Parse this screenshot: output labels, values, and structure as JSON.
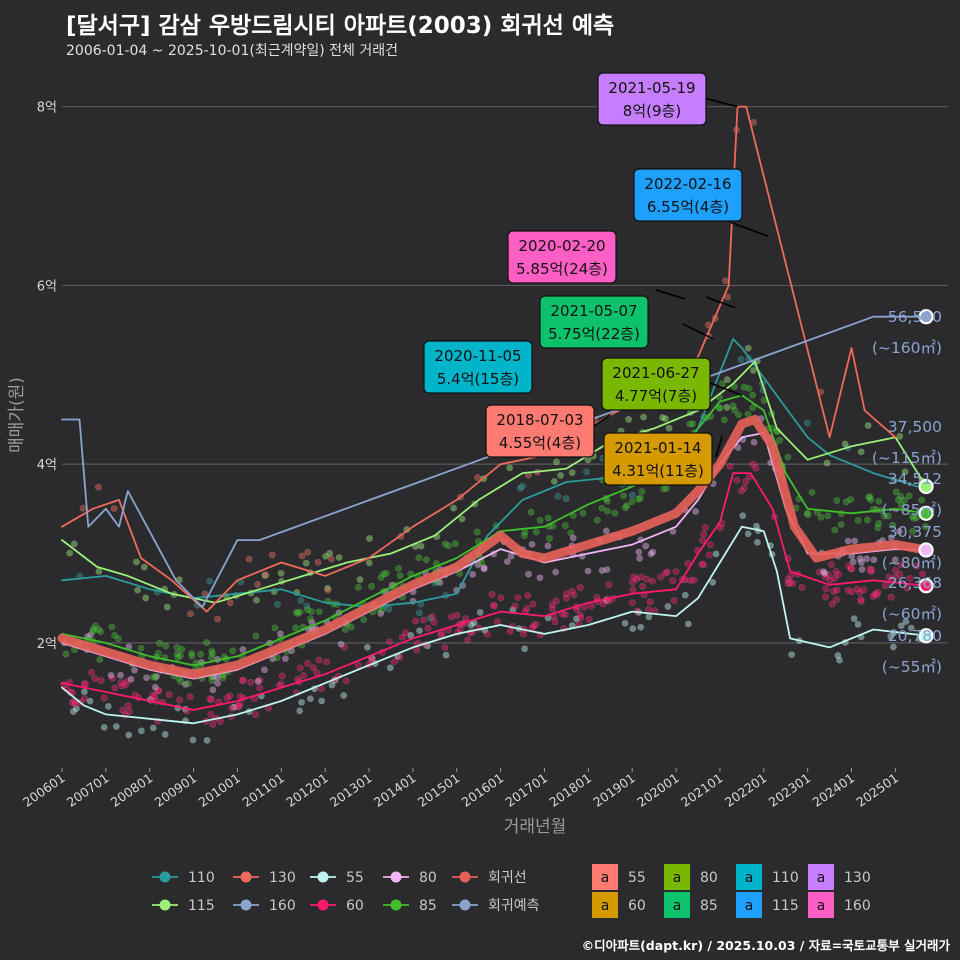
{
  "header": {
    "title": "[달서구] 감삼 우방드림시티 아파트(2003) 회귀선 예측",
    "subtitle": "2006-01-04 ~ 2025-10-01(최근계약일) 전체 거래건",
    "credit": "©디아파트(dapt.kr) / 2025.10.03 / 자료=국토교통부 실거래가"
  },
  "colors": {
    "background": "#2b2b2d",
    "grid": "#5a5a5c",
    "s110": "#2a9c9c",
    "s115": "#9bf07a",
    "s130": "#ef6a5a",
    "s160": "#8aa3cf",
    "s55": "#bff5f0",
    "s60": "#ff1a6e",
    "s80": "#f0b6f5",
    "s85": "#3fbf2a",
    "regression": "#e8605a",
    "forecast": "#8aa3cf"
  },
  "chart_data": {
    "type": "line",
    "title": "[달서구] 감삼 우방드림시티 아파트(2003) 회귀선 예측",
    "xlabel": "거래년월",
    "ylabel": "매매가(원)",
    "xlim": [
      2006.0,
      2026.2
    ],
    "ylim": [
      0.6,
      8.5
    ],
    "y_ticks": [
      {
        "value": 2,
        "label": "2억"
      },
      {
        "value": 4,
        "label": "4억"
      },
      {
        "value": 6,
        "label": "6억"
      },
      {
        "value": 8,
        "label": "8억"
      }
    ],
    "x_ticks": [
      {
        "value": 2006.0,
        "label": "200601"
      },
      {
        "value": 2007.0,
        "label": "200701"
      },
      {
        "value": 2008.0,
        "label": "200801"
      },
      {
        "value": 2009.0,
        "label": "200901"
      },
      {
        "value": 2010.0,
        "label": "201001"
      },
      {
        "value": 2011.0,
        "label": "201101"
      },
      {
        "value": 2012.0,
        "label": "201201"
      },
      {
        "value": 2013.0,
        "label": "201301"
      },
      {
        "value": 2014.0,
        "label": "201401"
      },
      {
        "value": 2015.0,
        "label": "201501"
      },
      {
        "value": 2016.0,
        "label": "201601"
      },
      {
        "value": 2017.0,
        "label": "201701"
      },
      {
        "value": 2018.0,
        "label": "201801"
      },
      {
        "value": 2019.0,
        "label": "201901"
      },
      {
        "value": 2020.0,
        "label": "202001"
      },
      {
        "value": 2021.0,
        "label": "202101"
      },
      {
        "value": 2022.0,
        "label": "202201"
      },
      {
        "value": 2023.0,
        "label": "202301"
      },
      {
        "value": 2024.0,
        "label": "202401"
      },
      {
        "value": 2025.0,
        "label": "202501"
      }
    ],
    "series": [
      {
        "name": "110",
        "color_key": "s110",
        "points": [
          [
            2006.0,
            2.7
          ],
          [
            2007.0,
            2.75
          ],
          [
            2008.0,
            2.6
          ],
          [
            2009.0,
            2.5
          ],
          [
            2010.0,
            2.55
          ],
          [
            2011.0,
            2.6
          ],
          [
            2012.0,
            2.45
          ],
          [
            2013.0,
            2.4
          ],
          [
            2014.0,
            2.45
          ],
          [
            2015.0,
            2.55
          ],
          [
            2015.7,
            3.2
          ],
          [
            2016.5,
            3.6
          ],
          [
            2017.5,
            3.8
          ],
          [
            2018.5,
            3.85
          ],
          [
            2019.5,
            3.9
          ],
          [
            2020.5,
            4.4
          ],
          [
            2021.3,
            5.4
          ],
          [
            2021.5,
            5.3
          ],
          [
            2023.0,
            4.3
          ],
          [
            2023.5,
            4.1
          ],
          [
            2024.5,
            3.9
          ],
          [
            2025.5,
            3.75
          ]
        ]
      },
      {
        "name": "115",
        "color_key": "s115",
        "points": [
          [
            2006.0,
            3.15
          ],
          [
            2006.8,
            2.85
          ],
          [
            2007.5,
            2.75
          ],
          [
            2008.5,
            2.55
          ],
          [
            2009.5,
            2.45
          ],
          [
            2010.5,
            2.6
          ],
          [
            2011.5,
            2.75
          ],
          [
            2012.5,
            2.9
          ],
          [
            2013.5,
            3.0
          ],
          [
            2014.5,
            3.2
          ],
          [
            2015.5,
            3.6
          ],
          [
            2016.5,
            3.9
          ],
          [
            2017.5,
            3.95
          ],
          [
            2018.5,
            4.25
          ],
          [
            2019.5,
            4.4
          ],
          [
            2020.5,
            4.6
          ],
          [
            2021.3,
            4.9
          ],
          [
            2021.8,
            5.15
          ],
          [
            2022.3,
            4.4
          ],
          [
            2023.0,
            4.05
          ],
          [
            2024.0,
            4.2
          ],
          [
            2025.0,
            4.3
          ],
          [
            2025.7,
            3.75
          ]
        ]
      },
      {
        "name": "130",
        "color_key": "s130",
        "points": [
          [
            2006.0,
            3.3
          ],
          [
            2006.7,
            3.5
          ],
          [
            2007.3,
            3.6
          ],
          [
            2007.8,
            2.95
          ],
          [
            2008.5,
            2.7
          ],
          [
            2009.3,
            2.35
          ],
          [
            2010.0,
            2.7
          ],
          [
            2011.0,
            2.9
          ],
          [
            2012.0,
            2.75
          ],
          [
            2013.0,
            2.95
          ],
          [
            2014.0,
            3.3
          ],
          [
            2015.0,
            3.6
          ],
          [
            2016.0,
            4.0
          ],
          [
            2017.0,
            4.1
          ],
          [
            2018.0,
            4.4
          ],
          [
            2018.5,
            4.55
          ],
          [
            2019.5,
            4.8
          ],
          [
            2020.5,
            5.2
          ],
          [
            2021.2,
            6.0
          ],
          [
            2021.4,
            8.0
          ],
          [
            2021.6,
            8.0
          ],
          [
            2023.5,
            4.3
          ],
          [
            2024.0,
            5.3
          ],
          [
            2024.3,
            4.6
          ],
          [
            2025.0,
            4.3
          ]
        ]
      },
      {
        "name": "160",
        "color_key": "s160",
        "points": [
          [
            2006.0,
            4.5
          ],
          [
            2006.4,
            4.5
          ],
          [
            2006.6,
            3.3
          ],
          [
            2007.0,
            3.5
          ],
          [
            2007.3,
            3.3
          ],
          [
            2007.5,
            3.7
          ],
          [
            2008.6,
            2.7
          ],
          [
            2009.2,
            2.4
          ],
          [
            2010.0,
            3.15
          ],
          [
            2010.5,
            3.15
          ],
          [
            2024.5,
            5.65
          ],
          [
            2025.7,
            5.65
          ]
        ]
      },
      {
        "name": "55",
        "color_key": "s55",
        "points": [
          [
            2006.0,
            1.5
          ],
          [
            2006.5,
            1.3
          ],
          [
            2007.0,
            1.2
          ],
          [
            2008.0,
            1.15
          ],
          [
            2009.0,
            1.1
          ],
          [
            2010.0,
            1.2
          ],
          [
            2011.0,
            1.35
          ],
          [
            2012.0,
            1.55
          ],
          [
            2013.0,
            1.75
          ],
          [
            2014.0,
            1.95
          ],
          [
            2015.0,
            2.1
          ],
          [
            2016.0,
            2.2
          ],
          [
            2017.0,
            2.1
          ],
          [
            2018.0,
            2.2
          ],
          [
            2019.0,
            2.35
          ],
          [
            2020.0,
            2.3
          ],
          [
            2020.5,
            2.5
          ],
          [
            2021.0,
            2.9
          ],
          [
            2021.5,
            3.3
          ],
          [
            2022.0,
            3.25
          ],
          [
            2022.3,
            2.8
          ],
          [
            2022.6,
            2.05
          ],
          [
            2023.5,
            1.95
          ],
          [
            2024.5,
            2.15
          ],
          [
            2025.7,
            2.08
          ]
        ]
      },
      {
        "name": "60",
        "color_key": "s60",
        "points": [
          [
            2006.0,
            1.55
          ],
          [
            2007.0,
            1.45
          ],
          [
            2008.0,
            1.35
          ],
          [
            2009.0,
            1.25
          ],
          [
            2010.0,
            1.35
          ],
          [
            2011.0,
            1.5
          ],
          [
            2012.0,
            1.65
          ],
          [
            2013.0,
            1.85
          ],
          [
            2014.0,
            2.05
          ],
          [
            2015.0,
            2.2
          ],
          [
            2016.0,
            2.35
          ],
          [
            2017.0,
            2.3
          ],
          [
            2018.0,
            2.45
          ],
          [
            2019.0,
            2.55
          ],
          [
            2020.0,
            2.6
          ],
          [
            2020.5,
            3.0
          ],
          [
            2021.0,
            3.35
          ],
          [
            2021.3,
            3.9
          ],
          [
            2021.7,
            3.9
          ],
          [
            2022.2,
            3.5
          ],
          [
            2022.6,
            2.8
          ],
          [
            2023.5,
            2.65
          ],
          [
            2024.5,
            2.7
          ],
          [
            2025.7,
            2.64
          ]
        ]
      },
      {
        "name": "80",
        "color_key": "s80",
        "points": [
          [
            2006.0,
            2.0
          ],
          [
            2007.0,
            1.85
          ],
          [
            2008.0,
            1.7
          ],
          [
            2009.0,
            1.6
          ],
          [
            2010.0,
            1.7
          ],
          [
            2011.0,
            1.9
          ],
          [
            2012.0,
            2.1
          ],
          [
            2013.0,
            2.35
          ],
          [
            2014.0,
            2.6
          ],
          [
            2015.0,
            2.8
          ],
          [
            2016.0,
            3.05
          ],
          [
            2017.0,
            2.9
          ],
          [
            2018.0,
            3.0
          ],
          [
            2019.0,
            3.1
          ],
          [
            2020.0,
            3.3
          ],
          [
            2020.5,
            3.6
          ],
          [
            2021.0,
            4.0
          ],
          [
            2021.5,
            4.3
          ],
          [
            2022.0,
            4.35
          ],
          [
            2022.5,
            3.5
          ],
          [
            2023.0,
            3.0
          ],
          [
            2024.0,
            3.0
          ],
          [
            2025.0,
            3.05
          ],
          [
            2025.7,
            3.04
          ]
        ]
      },
      {
        "name": "85",
        "color_key": "s85",
        "points": [
          [
            2006.0,
            2.1
          ],
          [
            2007.0,
            2.0
          ],
          [
            2008.0,
            1.85
          ],
          [
            2009.0,
            1.75
          ],
          [
            2010.0,
            1.85
          ],
          [
            2011.0,
            2.05
          ],
          [
            2012.0,
            2.25
          ],
          [
            2013.0,
            2.5
          ],
          [
            2014.0,
            2.75
          ],
          [
            2015.0,
            2.95
          ],
          [
            2016.0,
            3.25
          ],
          [
            2017.0,
            3.3
          ],
          [
            2018.0,
            3.55
          ],
          [
            2019.0,
            3.75
          ],
          [
            2020.0,
            4.0
          ],
          [
            2020.5,
            4.4
          ],
          [
            2021.0,
            4.7
          ],
          [
            2021.5,
            4.77
          ],
          [
            2022.0,
            4.6
          ],
          [
            2022.5,
            3.9
          ],
          [
            2023.0,
            3.5
          ],
          [
            2024.0,
            3.45
          ],
          [
            2025.0,
            3.5
          ],
          [
            2025.7,
            3.45
          ]
        ]
      },
      {
        "name": "회귀선",
        "color_key": "regression",
        "points": [
          [
            2006.0,
            2.05
          ],
          [
            2007.0,
            1.9
          ],
          [
            2008.0,
            1.75
          ],
          [
            2009.0,
            1.65
          ],
          [
            2010.0,
            1.75
          ],
          [
            2011.0,
            1.95
          ],
          [
            2012.0,
            2.15
          ],
          [
            2013.0,
            2.4
          ],
          [
            2014.0,
            2.65
          ],
          [
            2015.0,
            2.85
          ],
          [
            2016.0,
            3.2
          ],
          [
            2016.5,
            3.0
          ],
          [
            2017.0,
            2.95
          ],
          [
            2018.0,
            3.1
          ],
          [
            2019.0,
            3.25
          ],
          [
            2020.0,
            3.45
          ],
          [
            2020.5,
            3.7
          ],
          [
            2021.0,
            4.0
          ],
          [
            2021.5,
            4.45
          ],
          [
            2021.8,
            4.5
          ],
          [
            2022.2,
            4.2
          ],
          [
            2022.7,
            3.3
          ],
          [
            2023.2,
            2.95
          ],
          [
            2024.0,
            3.05
          ],
          [
            2025.0,
            3.1
          ],
          [
            2025.7,
            3.04
          ]
        ]
      }
    ],
    "callouts": [
      {
        "date": "2021-05-19",
        "value_label": "8억(9층)",
        "bg": "#c77dff",
        "anchor": [
          2021.4,
          8.0
        ]
      },
      {
        "date": "2022-02-16",
        "value_label": "6.55억(4층)",
        "bg": "#1ea0ff",
        "anchor": [
          2022.1,
          6.55
        ]
      },
      {
        "date": "2020-02-20",
        "value_label": "5.85억(24층)",
        "bg": "#ff5fc4",
        "anchor": [
          2020.2,
          5.85
        ]
      },
      {
        "date": "2021-05-07",
        "value_label": "5.75억(22층)",
        "bg": "#0ec26c",
        "anchor": [
          2021.35,
          5.75
        ]
      },
      {
        "date": "2020-11-05",
        "value_label": "5.4억(15층)",
        "bg": "#00b5c9",
        "anchor": [
          2020.85,
          5.4
        ]
      },
      {
        "date": "2021-06-27",
        "value_label": "4.77억(7층)",
        "bg": "#7ab800",
        "anchor": [
          2021.5,
          4.77
        ]
      },
      {
        "date": "2018-07-03",
        "value_label": "4.55억(4층)",
        "bg": "#ff7a70",
        "anchor": [
          2018.5,
          4.55
        ]
      },
      {
        "date": "2021-01-14",
        "value_label": "4.31억(11층)",
        "bg": "#d49a00",
        "anchor": [
          2021.05,
          4.31
        ]
      }
    ],
    "end_labels": [
      {
        "price": "56,500",
        "area": "(~160㎡)",
        "color_key": "s160",
        "value": 5.65
      },
      {
        "price": "37,500",
        "area": "(~115㎡)",
        "color_key": "s115",
        "value": 3.75
      },
      {
        "price": "34,512",
        "area": "(~85㎡)",
        "color_key": "s85",
        "value": 3.45
      },
      {
        "price": "30,375",
        "area": "(~80㎡)",
        "color_key": "s80",
        "value": 3.04
      },
      {
        "price": "26,368",
        "area": "(~60㎡)",
        "color_key": "s60",
        "value": 2.64
      },
      {
        "price": "20,780",
        "area": "(~55㎡)",
        "color_key": "s55",
        "value": 2.08
      }
    ],
    "legend_lines": [
      {
        "label": "110",
        "color_key": "s110"
      },
      {
        "label": "130",
        "color_key": "s130"
      },
      {
        "label": "55",
        "color_key": "s55"
      },
      {
        "label": "80",
        "color_key": "s80"
      },
      {
        "label": "회귀선",
        "color_key": "regression"
      },
      {
        "label": "115",
        "color_key": "s115"
      },
      {
        "label": "160",
        "color_key": "s160"
      },
      {
        "label": "60",
        "color_key": "s60"
      },
      {
        "label": "85",
        "color_key": "s85"
      },
      {
        "label": "회귀예측",
        "color_key": "forecast"
      }
    ],
    "legend_boxes": [
      {
        "glyph": "a",
        "label": "55",
        "bg": "#ff7a70"
      },
      {
        "glyph": "a",
        "label": "80",
        "bg": "#7ab800"
      },
      {
        "glyph": "a",
        "label": "110",
        "bg": "#00b5c9"
      },
      {
        "glyph": "a",
        "label": "130",
        "bg": "#c77dff"
      },
      {
        "glyph": "a",
        "label": "60",
        "bg": "#d49a00"
      },
      {
        "glyph": "a",
        "label": "85",
        "bg": "#0ec26c"
      },
      {
        "glyph": "a",
        "label": "115",
        "bg": "#1ea0ff"
      },
      {
        "glyph": "a",
        "label": "160",
        "bg": "#ff5fc4"
      }
    ]
  }
}
